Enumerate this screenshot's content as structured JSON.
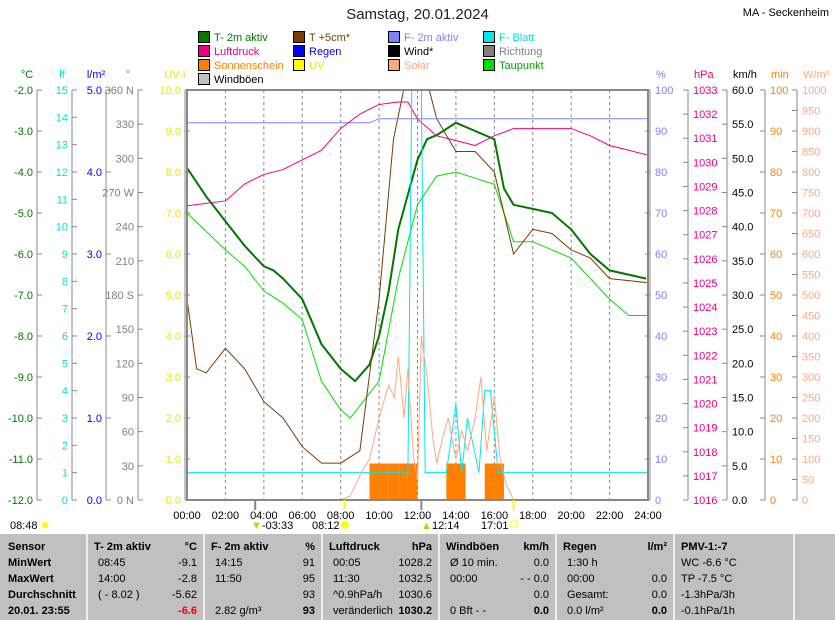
{
  "title": "Samstag, 20.01.2024",
  "station": "MA - Seckenheim",
  "legend": [
    {
      "label": "T- 2m aktiv",
      "color": "#007800"
    },
    {
      "label": "T +5cm*",
      "color": "#7a3c00"
    },
    {
      "label": "F- 2m aktiv",
      "color": "#8080ff"
    },
    {
      "label": "F- Blatt",
      "color": "#00e8e8"
    },
    {
      "label": "Luftdruck",
      "color": "#f00080"
    },
    {
      "label": "Regen",
      "color": "#0000ff"
    },
    {
      "label": "Wind*",
      "color": "#000000"
    },
    {
      "label": "Richtung",
      "color": "#808080"
    },
    {
      "label": "Sonnenschein",
      "color": "#ff8000"
    },
    {
      "label": "UV",
      "color": "#ffff00"
    },
    {
      "label": "Solar",
      "color": "#ffa880"
    },
    {
      "label": "Taupunkt",
      "color": "#00e000"
    },
    {
      "label": "Windböen",
      "color": "#c0c0c0"
    }
  ],
  "chart_data": {
    "type": "line",
    "title": "Samstag, 20.01.2024",
    "grid": true,
    "legend_position": "top",
    "x_ticks": [
      "00:00",
      "02:00",
      "04:00",
      "06:00",
      "08:00",
      "10:00",
      "12:00",
      "14:00",
      "16:00",
      "18:00",
      "20:00",
      "22:00",
      "24:00"
    ],
    "xlim": [
      0,
      24
    ],
    "axes_left": [
      {
        "unit": "°C",
        "min": -12,
        "max": -2,
        "step": 1,
        "dec": 1,
        "color": "#007800"
      },
      {
        "unit": "lf",
        "min": 0,
        "max": 15,
        "step": 1,
        "dec": 0,
        "color": "#00e0e0"
      },
      {
        "unit": "l/m²",
        "min": 0,
        "max": 5,
        "step": 1,
        "dec": 1,
        "color": "#0000ff"
      },
      {
        "unit": "°",
        "min": 0,
        "max": 360,
        "step": 30,
        "dec": 0,
        "color": "#808080",
        "labels": [
          "0 N",
          "30",
          "60",
          "90",
          "120",
          "150",
          "180 S",
          "210",
          "240",
          "270 W",
          "300",
          "330",
          "360 N"
        ]
      },
      {
        "unit": "UV-I",
        "min": 0,
        "max": 10,
        "step": 1,
        "dec": 1,
        "color": "#e8e800"
      }
    ],
    "axes_right": [
      {
        "unit": "%",
        "min": 0,
        "max": 100,
        "step": 10,
        "dec": 0,
        "color": "#8080ff"
      },
      {
        "unit": "hPa",
        "min": 1016,
        "max": 1033,
        "step": 1,
        "dec": 0,
        "color": "#f00080"
      },
      {
        "unit": "km/h",
        "min": 0,
        "max": 60,
        "step": 5,
        "dec": 1,
        "color": "#000000"
      },
      {
        "unit": "min",
        "min": 0,
        "max": 100,
        "step": 10,
        "dec": 0,
        "color": "#ff8000"
      },
      {
        "unit": "W/m²",
        "min": 0,
        "max": 1000,
        "step": 50,
        "dec": 0,
        "color": "#ffa880"
      }
    ],
    "series": [
      {
        "name": "T- 2m aktiv",
        "axis": "°C",
        "color": "#007800",
        "width": 2,
        "x": [
          0,
          1,
          2,
          3,
          4,
          4.5,
          5,
          6,
          7,
          8,
          8.75,
          9.5,
          10,
          10.5,
          11,
          12,
          12.5,
          13,
          14,
          15,
          16,
          16.5,
          17,
          18,
          19,
          20,
          21,
          22,
          23.9
        ],
        "y": [
          -3.9,
          -4.6,
          -5.2,
          -5.8,
          -6.3,
          -6.4,
          -6.6,
          -7.1,
          -8.2,
          -8.8,
          -9.1,
          -8.7,
          -8.0,
          -6.9,
          -5.4,
          -3.7,
          -3.2,
          -3.1,
          -2.8,
          -3.0,
          -3.2,
          -4.4,
          -4.8,
          -4.9,
          -5.0,
          -5.4,
          -6.0,
          -6.4,
          -6.6
        ]
      },
      {
        "name": "Taupunkt",
        "axis": "°C",
        "color": "#00e000",
        "width": 1,
        "x": [
          0,
          2,
          3,
          4,
          5,
          6,
          7,
          8,
          8.5,
          10,
          11,
          12,
          13,
          14,
          16,
          17,
          18,
          20,
          22,
          23,
          24
        ],
        "y": [
          -5.0,
          -5.9,
          -6.3,
          -6.9,
          -7.2,
          -7.6,
          -9.1,
          -9.8,
          -10.0,
          -9.1,
          -6.6,
          -4.8,
          -4.1,
          -4.0,
          -4.3,
          -5.7,
          -5.7,
          -6.1,
          -7.1,
          -7.5,
          -7.5
        ]
      },
      {
        "name": "T +5cm*",
        "axis": "°C",
        "color": "#7a3c00",
        "width": 1,
        "x": [
          0,
          0.5,
          1,
          2,
          3,
          4,
          5,
          6,
          7,
          8,
          9,
          10,
          10.75,
          11.5,
          12.5,
          13,
          14,
          15,
          16,
          17,
          18,
          19,
          20,
          21,
          22,
          24
        ],
        "y": [
          -7.1,
          -8.8,
          -8.9,
          -8.3,
          -8.8,
          -9.6,
          -10.0,
          -10.7,
          -11.1,
          -11.1,
          -10.8,
          -7.1,
          -3.2,
          -1.5,
          -1.8,
          -2.7,
          -3.5,
          -3.5,
          -4.0,
          -6.0,
          -5.4,
          -5.5,
          -5.9,
          -6.1,
          -6.6,
          -6.7
        ]
      },
      {
        "name": "F- 2m aktiv",
        "axis": "%",
        "color": "#8080ff",
        "width": 1,
        "x": [
          0,
          4,
          8,
          9.5,
          10,
          12,
          14,
          16,
          24
        ],
        "y": [
          92,
          92,
          92,
          92,
          93,
          93,
          93,
          93,
          93
        ]
      },
      {
        "name": "Luftdruck",
        "axis": "hPa",
        "color": "#f00080",
        "width": 1,
        "x": [
          0,
          2,
          3,
          4,
          5,
          6,
          7,
          8,
          9,
          10,
          11,
          11.5,
          12,
          13,
          14,
          15,
          16,
          17,
          18,
          20,
          21,
          22,
          23,
          24
        ],
        "y": [
          1028.2,
          1028.4,
          1029.1,
          1029.5,
          1029.7,
          1030.1,
          1030.5,
          1031.4,
          1032.0,
          1032.4,
          1032.5,
          1032.5,
          1031.8,
          1031.1,
          1030.9,
          1030.7,
          1031.1,
          1031.4,
          1031.4,
          1031.4,
          1031.1,
          1030.7,
          1030.5,
          1030.3
        ]
      },
      {
        "name": "F- Blatt",
        "axis": "lf",
        "color": "#00e8e8",
        "width": 1,
        "x": [
          0,
          11.5,
          11.7,
          12.2,
          12.4,
          13.5,
          14,
          14.3,
          14.6,
          15.2,
          15.5,
          15.8,
          16.2,
          24
        ],
        "y": [
          1.0,
          1.0,
          15,
          15,
          1.0,
          1.0,
          3.5,
          1.0,
          3.0,
          1.0,
          4.0,
          4.0,
          1.0,
          1.0
        ]
      },
      {
        "name": "Solar",
        "axis": "W/m²",
        "color": "#ffa880",
        "width": 1,
        "x": [
          8,
          8.5,
          9,
          9.5,
          10,
          10.5,
          10.8,
          11,
          11.3,
          11.5,
          11.8,
          12,
          12.2,
          12.5,
          12.8,
          13,
          13.3,
          13.6,
          14,
          14.3,
          14.6,
          15,
          15.3,
          15.6,
          16,
          16.3,
          16.6,
          17
        ],
        "y": [
          0,
          10,
          60,
          100,
          200,
          280,
          250,
          350,
          200,
          320,
          100,
          50,
          400,
          300,
          150,
          90,
          150,
          200,
          100,
          170,
          120,
          200,
          300,
          120,
          250,
          100,
          40,
          0
        ]
      }
    ],
    "sunshine_min": {
      "x": [
        9.5,
        10,
        10.5,
        11,
        11.5,
        13.5,
        14,
        15.5,
        16
      ],
      "y": [
        5,
        5,
        5,
        5,
        5,
        5,
        5,
        5,
        5
      ]
    }
  },
  "events": [
    {
      "time": "08:48",
      "icon": "sun-icon"
    },
    {
      "time": "-03:33",
      "icon": "moon-down-icon"
    },
    {
      "time": "08:12",
      "icon": "sunrise-icon"
    },
    {
      "time": "12:14",
      "icon": "moon-up-icon"
    },
    {
      "time": "17:01",
      "icon": "sunset-icon"
    }
  ],
  "table": {
    "c0": {
      "h": "Sensor",
      "r": [
        "MinWert",
        "MaxWert",
        "Durchschnitt",
        "20.01. 23:55"
      ]
    },
    "c1": {
      "h": "T- 2m aktiv",
      "u": "°C",
      "t": [
        "08:45",
        "14:00",
        "( - 8.02 )",
        ""
      ],
      "v": [
        "-9.1",
        "-2.8",
        "-5.62",
        "-6.6"
      ]
    },
    "c2": {
      "h": "F- 2m aktiv",
      "u": "%",
      "t": [
        "14:15",
        "11:50",
        "",
        "2.82 g/m³"
      ],
      "v": [
        "91",
        "95",
        "93",
        "93"
      ]
    },
    "c3": {
      "h": "Luftdruck",
      "u": "hPa",
      "t": [
        "00:05",
        "11:30",
        "^0.9hPa/h",
        "veränderlich"
      ],
      "v": [
        "1028.2",
        "1032.5",
        "1030.6",
        "1030.2"
      ]
    },
    "c4": {
      "h": "Windböen",
      "u": "km/h",
      "t": [
        "Ø 10 min.",
        "00:00",
        "",
        "0 Bft - -"
      ],
      "v": [
        "0.0",
        "- - 0.0",
        "0.0",
        "0.0"
      ]
    },
    "c5": {
      "h": "Regen",
      "u": "l/m²",
      "t": [
        "1:30 h",
        "00:00",
        "Gesamt:",
        "0.0 l/m²"
      ],
      "v": [
        "",
        "0.0",
        "0.0",
        "0.0"
      ]
    },
    "c6": {
      "h": "PMV-1:-7",
      "t": [
        "WC -6.6 °C",
        "TP -7.5 °C",
        "-1.3hPa/3h",
        "-0.1hPa/1h"
      ]
    }
  }
}
